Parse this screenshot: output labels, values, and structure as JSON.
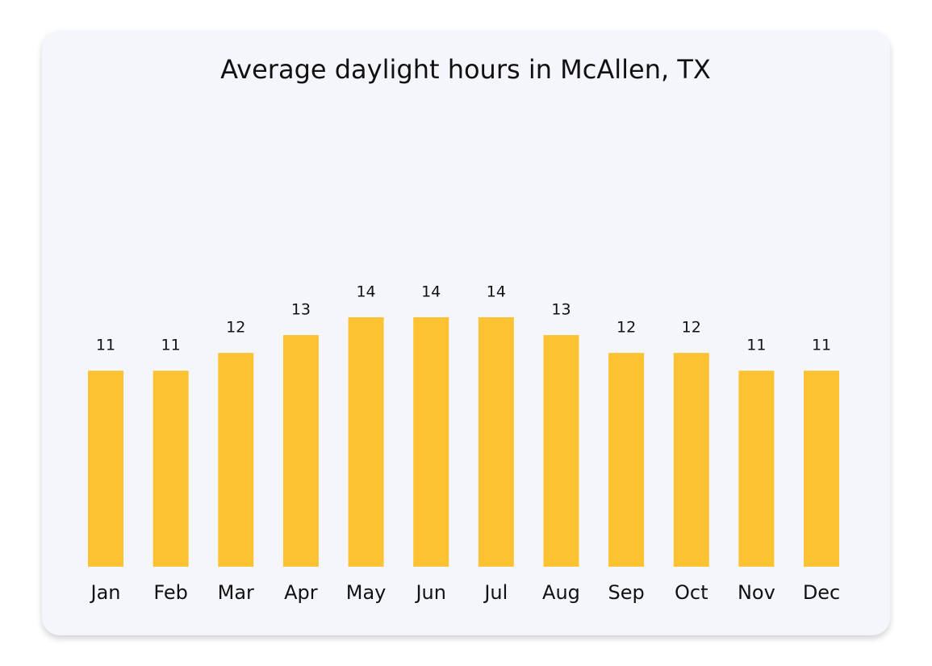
{
  "chart_data": {
    "type": "bar",
    "title": "Average daylight hours in McAllen, TX",
    "categories": [
      "Jan",
      "Feb",
      "Mar",
      "Apr",
      "May",
      "Jun",
      "Jul",
      "Aug",
      "Sep",
      "Oct",
      "Nov",
      "Dec"
    ],
    "values": [
      11,
      11,
      12,
      13,
      14,
      14,
      14,
      13,
      12,
      12,
      11,
      11
    ],
    "color": "#fdc232"
  }
}
